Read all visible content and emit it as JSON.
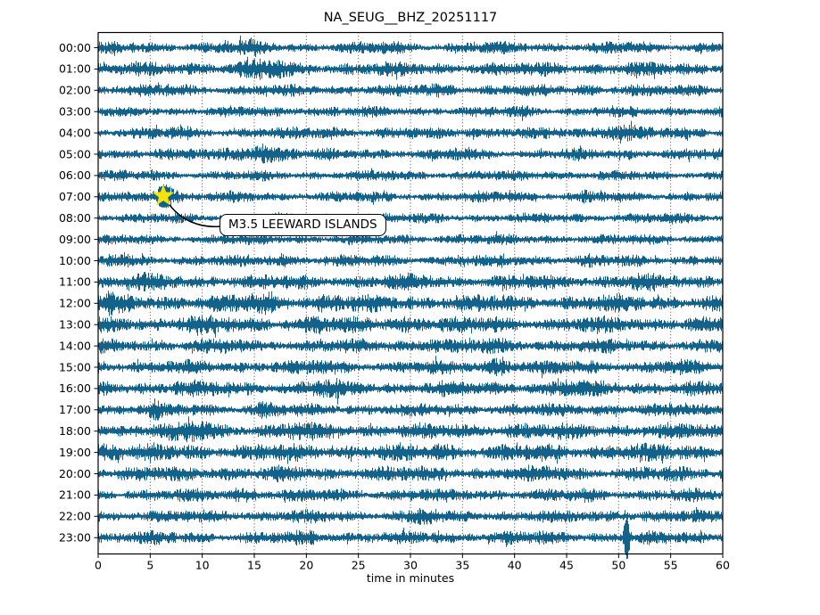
{
  "chart_data": {
    "type": "line",
    "variant": "helicorder_dayplot_seismogram",
    "title": "NA_SEUG__BHZ_20251117",
    "xlabel": "time in minutes",
    "xlim": [
      0,
      60
    ],
    "xticks": [
      0,
      5,
      10,
      15,
      20,
      25,
      30,
      35,
      40,
      45,
      50,
      55,
      60
    ],
    "grid": "vertical dotted lines at 5-minute intervals",
    "legend": "none",
    "background": "#ffffff",
    "trace_color": "#12628b",
    "grid_color": "#444444",
    "frame_color": "#000000",
    "noise_seed": 20251117,
    "bursts_format": "[minute, extra_half_amplitude_px, width_minutes]",
    "rows": [
      {
        "label": "00:00",
        "base_amplitude": 5.5,
        "bursts": [
          [
            14.5,
            3,
            1.2
          ],
          [
            28,
            1.5,
            0.8
          ],
          [
            52,
            1,
            0.6
          ]
        ]
      },
      {
        "label": "01:00",
        "base_amplitude": 6.5,
        "bursts": [
          [
            16,
            4.5,
            1.6
          ],
          [
            10,
            1.5,
            0.8
          ],
          [
            44,
            1.5,
            0.7
          ]
        ]
      },
      {
        "label": "02:00",
        "base_amplitude": 5.5,
        "bursts": [
          [
            7,
            2,
            0.7
          ],
          [
            33,
            2.5,
            0.9
          ],
          [
            47,
            1.5,
            0.7
          ],
          [
            58,
            2,
            0.5
          ]
        ]
      },
      {
        "label": "03:00",
        "base_amplitude": 5.0,
        "bursts": [
          [
            20,
            1.2,
            0.9
          ],
          [
            41,
            1.5,
            0.7
          ]
        ]
      },
      {
        "label": "04:00",
        "base_amplitude": 5.5,
        "bursts": [
          [
            50,
            5.5,
            1.3
          ],
          [
            22,
            2.5,
            0.9
          ],
          [
            8,
            1.8,
            0.7
          ],
          [
            36,
            1.5,
            0.8
          ]
        ]
      },
      {
        "label": "05:00",
        "base_amplitude": 5.5,
        "bursts": [
          [
            16,
            6.5,
            1.5
          ],
          [
            6,
            2.5,
            0.7
          ],
          [
            35,
            1.5,
            0.9
          ]
        ]
      },
      {
        "label": "06:00",
        "base_amplitude": 4.8,
        "bursts": [
          [
            43,
            1.8,
            0.7
          ],
          [
            28,
            1.2,
            0.6
          ],
          [
            5,
            1.2,
            0.5
          ]
        ]
      },
      {
        "label": "07:00",
        "base_amplitude": 5.0,
        "bursts": [
          [
            6.3,
            11,
            0.75
          ],
          [
            40,
            2,
            0.7
          ],
          [
            47,
            1.5,
            0.5
          ]
        ]
      },
      {
        "label": "08:00",
        "base_amplitude": 4.8,
        "bursts": [
          [
            25,
            1.2,
            0.9
          ],
          [
            55,
            1,
            0.6
          ]
        ]
      },
      {
        "label": "09:00",
        "base_amplitude": 4.8,
        "bursts": [
          [
            12,
            1,
            0.7
          ],
          [
            35,
            1.3,
            0.8
          ]
        ]
      },
      {
        "label": "10:00",
        "base_amplitude": 5.5,
        "bursts": [
          [
            18,
            2,
            1.0
          ],
          [
            2,
            1.5,
            0.7
          ],
          [
            47,
            1.3,
            0.8
          ]
        ]
      },
      {
        "label": "11:00",
        "base_amplitude": 7.0,
        "bursts": [
          [
            4,
            2.5,
            0.9
          ],
          [
            52,
            2.5,
            1.0
          ],
          [
            30,
            1.5,
            1.0
          ]
        ]
      },
      {
        "label": "12:00",
        "base_amplitude": 8.0,
        "bursts": [
          [
            1,
            3.5,
            0.7
          ],
          [
            16,
            3.5,
            1.4
          ],
          [
            22,
            2.5,
            0.9
          ]
        ]
      },
      {
        "label": "13:00",
        "base_amplitude": 7.5,
        "bursts": [
          [
            9,
            3.5,
            1.1
          ],
          [
            21,
            3.5,
            0.9
          ],
          [
            30,
            2.5,
            1.3
          ]
        ]
      },
      {
        "label": "14:00",
        "base_amplitude": 6.5,
        "bursts": [
          [
            32,
            2.5,
            0.9
          ],
          [
            38,
            2.5,
            0.7
          ],
          [
            12,
            1.5,
            0.8
          ]
        ]
      },
      {
        "label": "15:00",
        "base_amplitude": 6.5,
        "bursts": [
          [
            38.5,
            5.5,
            0.8
          ],
          [
            21,
            1.8,
            0.7
          ],
          [
            55,
            1.5,
            0.8
          ]
        ]
      },
      {
        "label": "16:00",
        "base_amplitude": 7.0,
        "bursts": [
          [
            22,
            3.5,
            1.1
          ],
          [
            45,
            2.5,
            0.9
          ],
          [
            8,
            1.5,
            0.8
          ]
        ]
      },
      {
        "label": "17:00",
        "base_amplitude": 6.0,
        "bursts": [
          [
            5.4,
            5,
            0.4
          ],
          [
            16,
            3,
            0.9
          ],
          [
            48,
            1.5,
            0.7
          ]
        ]
      },
      {
        "label": "18:00",
        "base_amplitude": 7.5,
        "bursts": [
          [
            9.5,
            4.5,
            1.1
          ],
          [
            19,
            2.5,
            0.9
          ],
          [
            40,
            1.5,
            0.8
          ]
        ]
      },
      {
        "label": "19:00",
        "base_amplitude": 8.0,
        "bursts": [
          [
            1,
            3.5,
            0.8
          ],
          [
            33,
            2.5,
            0.9
          ],
          [
            50,
            1.5,
            0.8
          ]
        ]
      },
      {
        "label": "20:00",
        "base_amplitude": 7.0,
        "bursts": [
          [
            12,
            1.8,
            0.9
          ],
          [
            26,
            1.8,
            0.9
          ],
          [
            44,
            1.5,
            0.8
          ]
        ]
      },
      {
        "label": "21:00",
        "base_amplitude": 6.0,
        "bursts": [
          [
            14,
            3.5,
            0.9
          ],
          [
            47,
            1.8,
            0.8
          ],
          [
            30,
            1.2,
            0.7
          ]
        ]
      },
      {
        "label": "22:00",
        "base_amplitude": 6.0,
        "bursts": [
          [
            31.5,
            3.5,
            0.8
          ],
          [
            12,
            1.8,
            0.7
          ],
          [
            50,
            1.5,
            0.7
          ]
        ]
      },
      {
        "label": "23:00",
        "base_amplitude": 6.0,
        "bursts": [
          [
            50.8,
            20,
            0.2
          ],
          [
            20,
            1.8,
            0.9
          ],
          [
            40,
            1.5,
            0.7
          ]
        ]
      }
    ],
    "event_marker": {
      "row": "07:00",
      "minute": 6.26,
      "label": "M3.5 LEEWARD ISLANDS",
      "marker": "star",
      "marker_color": "#f6e408",
      "arrow_color": "#000000"
    }
  }
}
